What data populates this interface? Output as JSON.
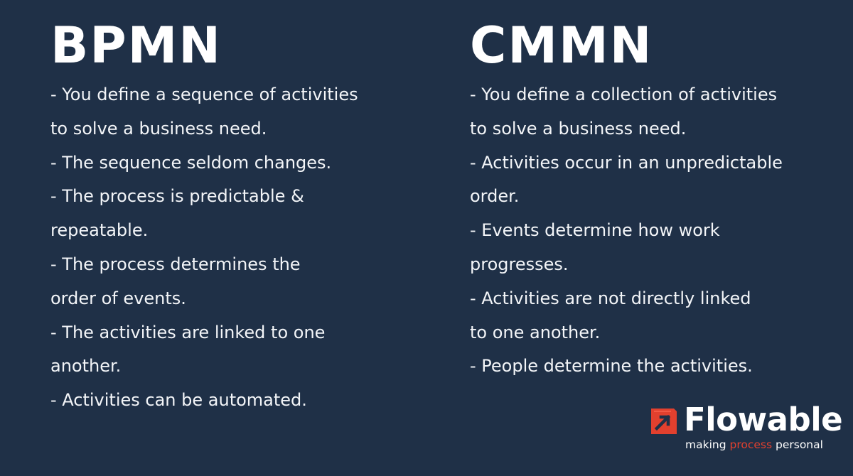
{
  "left": {
    "title": "BPMN",
    "lines": [
      "- You define a sequence of activities",
      "to solve a business need.",
      "- The sequence seldom changes.",
      "- The process is predictable &",
      "repeatable.",
      "- The process determines the",
      "order of events.",
      "- The activities are linked to one",
      "another.",
      "- Activities can be automated."
    ]
  },
  "right": {
    "title": "CMMN",
    "lines": [
      "- You define a collection of activities",
      "to solve a business need.",
      "- Activities occur in an unpredictable",
      "order.",
      "- Events determine how work",
      "progresses.",
      "- Activities are not directly linked",
      "to one another.",
      "- People determine the activities."
    ]
  },
  "logo": {
    "wordmark": "Flowable",
    "tagline_pre": "making ",
    "tagline_accent": "process",
    "tagline_post": " personal",
    "icon": "flowable-arrow-icon",
    "accent_color": "#e2402e"
  },
  "colors": {
    "background": "#1f3047",
    "text": "#ffffff"
  }
}
